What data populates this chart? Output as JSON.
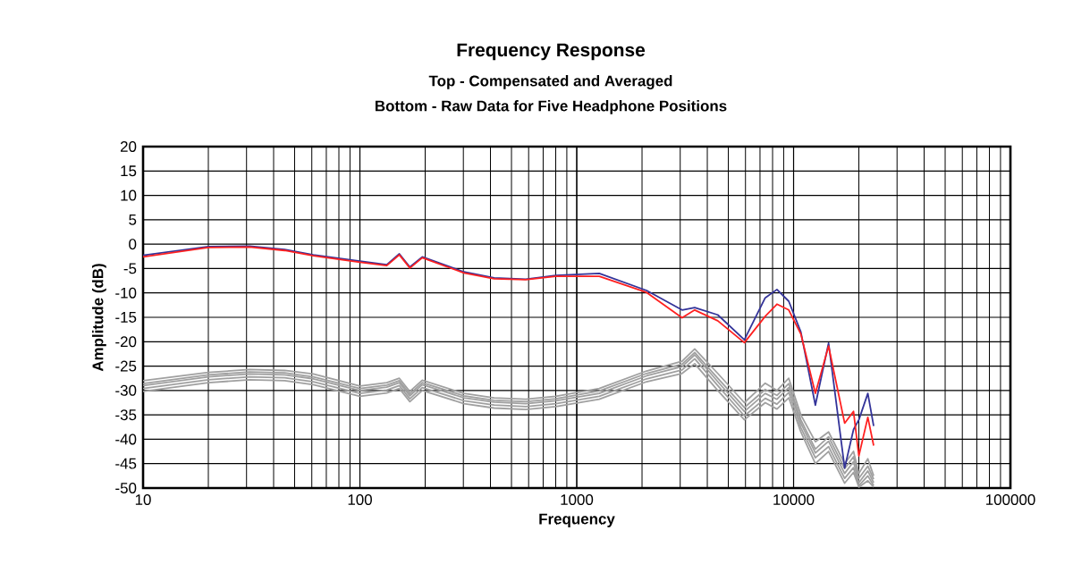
{
  "chart_data": {
    "type": "line",
    "title": "Frequency Response",
    "subtitle": "Top -  Compensated and Averaged",
    "annotations": [
      "Bottom - Raw Data for Five Headphone Positions"
    ],
    "xlabel": "Frequency",
    "ylabel": "Amplitude (dB)",
    "log": "x",
    "grid": true,
    "xlim": [
      10,
      100000
    ],
    "ylim": [
      -50,
      20
    ],
    "xticks": [
      10,
      100,
      1000,
      10000,
      100000
    ],
    "yticks": [
      -50,
      -45,
      -40,
      -35,
      -30,
      -25,
      -20,
      -15,
      -10,
      -5,
      0,
      5,
      10,
      15,
      20
    ],
    "x": [
      10,
      20,
      31,
      45,
      61,
      100,
      133,
      152,
      170,
      194,
      302,
      416,
      582,
      800,
      1270,
      2100,
      3060,
      3500,
      4470,
      5930,
      7400,
      8380,
      9500,
      10800,
      12600,
      14500,
      17200,
      18900,
      20000,
      22000,
      23400
    ],
    "series": [
      {
        "color": "#a0a0a0",
        "values": [
          -28,
          -26.3,
          -25.7,
          -25.9,
          -26.6,
          -29.1,
          -28.4,
          -27.5,
          -30.2,
          -27.9,
          -30.6,
          -31.5,
          -31.8,
          -31.2,
          -29.6,
          -26,
          -24,
          -21.5,
          -26.5,
          -32.5,
          -28.5,
          -30,
          -27.5,
          -35,
          -40.5,
          -38.5,
          -45,
          -42.5,
          -47,
          -44,
          -47.5
        ]
      },
      {
        "color": "#a0a0a0",
        "values": [
          -28.6,
          -26.8,
          -26.2,
          -26.4,
          -27.2,
          -29.6,
          -28.9,
          -28,
          -30.7,
          -28.4,
          -31.1,
          -32,
          -32.3,
          -31.7,
          -30.1,
          -26.5,
          -24.6,
          -22.2,
          -27.5,
          -33.5,
          -29.8,
          -31,
          -28.6,
          -36,
          -42,
          -39.5,
          -46,
          -43.6,
          -48,
          -45.5,
          -48.2
        ]
      },
      {
        "color": "#a0a0a0",
        "values": [
          -29,
          -27.2,
          -26.6,
          -26.8,
          -27.6,
          -30,
          -29.3,
          -28.4,
          -31.1,
          -28.8,
          -31.5,
          -32.4,
          -32.7,
          -32.1,
          -30.6,
          -27,
          -25.1,
          -22.7,
          -28.2,
          -34.3,
          -30.6,
          -31.8,
          -29.4,
          -36.7,
          -42.8,
          -40.4,
          -47,
          -44.6,
          -48.9,
          -46.5,
          -48.9
        ]
      },
      {
        "color": "#a0a0a0",
        "values": [
          -29.6,
          -27.8,
          -27.2,
          -27.4,
          -28.2,
          -30.6,
          -29.9,
          -29,
          -31.7,
          -29.4,
          -32.1,
          -33,
          -33.3,
          -32.7,
          -31.2,
          -27.6,
          -25.8,
          -23.5,
          -29,
          -35.2,
          -31.6,
          -32.8,
          -30.4,
          -37.6,
          -43.8,
          -41.5,
          -48,
          -45.8,
          -49.5,
          -47.5,
          -49.5
        ]
      },
      {
        "color": "#a0a0a0",
        "values": [
          -30.2,
          -28.4,
          -27.8,
          -28,
          -28.8,
          -31.2,
          -30.5,
          -29.6,
          -32.3,
          -30,
          -32.7,
          -33.6,
          -33.9,
          -33.3,
          -31.8,
          -28.2,
          -26.5,
          -24.5,
          -30,
          -36,
          -32.5,
          -33.8,
          -31.5,
          -38.5,
          -45,
          -42.5,
          -49,
          -46.8,
          -49.8,
          -48.5,
          -49.8
        ]
      },
      {
        "color": "#333399",
        "values": [
          -2.3,
          -0.5,
          -0.4,
          -1.1,
          -2.2,
          -3.5,
          -4.2,
          -2.0,
          -4.7,
          -2.6,
          -5.7,
          -6.9,
          -7.2,
          -6.4,
          -6.0,
          -9.5,
          -13.5,
          -13.0,
          -14.5,
          -19.6,
          -11,
          -9.3,
          -11.7,
          -18,
          -33,
          -20.3,
          -45.9,
          -38,
          -36,
          -30.6,
          -37.3
        ]
      },
      {
        "color": "#ff2020",
        "values": [
          -2.6,
          -0.7,
          -0.6,
          -1.3,
          -2.4,
          -3.7,
          -4.4,
          -2.2,
          -4.9,
          -2.8,
          -5.9,
          -7.1,
          -7.3,
          -6.6,
          -6.6,
          -9.9,
          -15.1,
          -13.5,
          -15.7,
          -20.2,
          -14.8,
          -12.3,
          -13.5,
          -18.4,
          -30.6,
          -20.9,
          -36.7,
          -34.3,
          -43.4,
          -35.5,
          -41.3
        ]
      }
    ]
  }
}
